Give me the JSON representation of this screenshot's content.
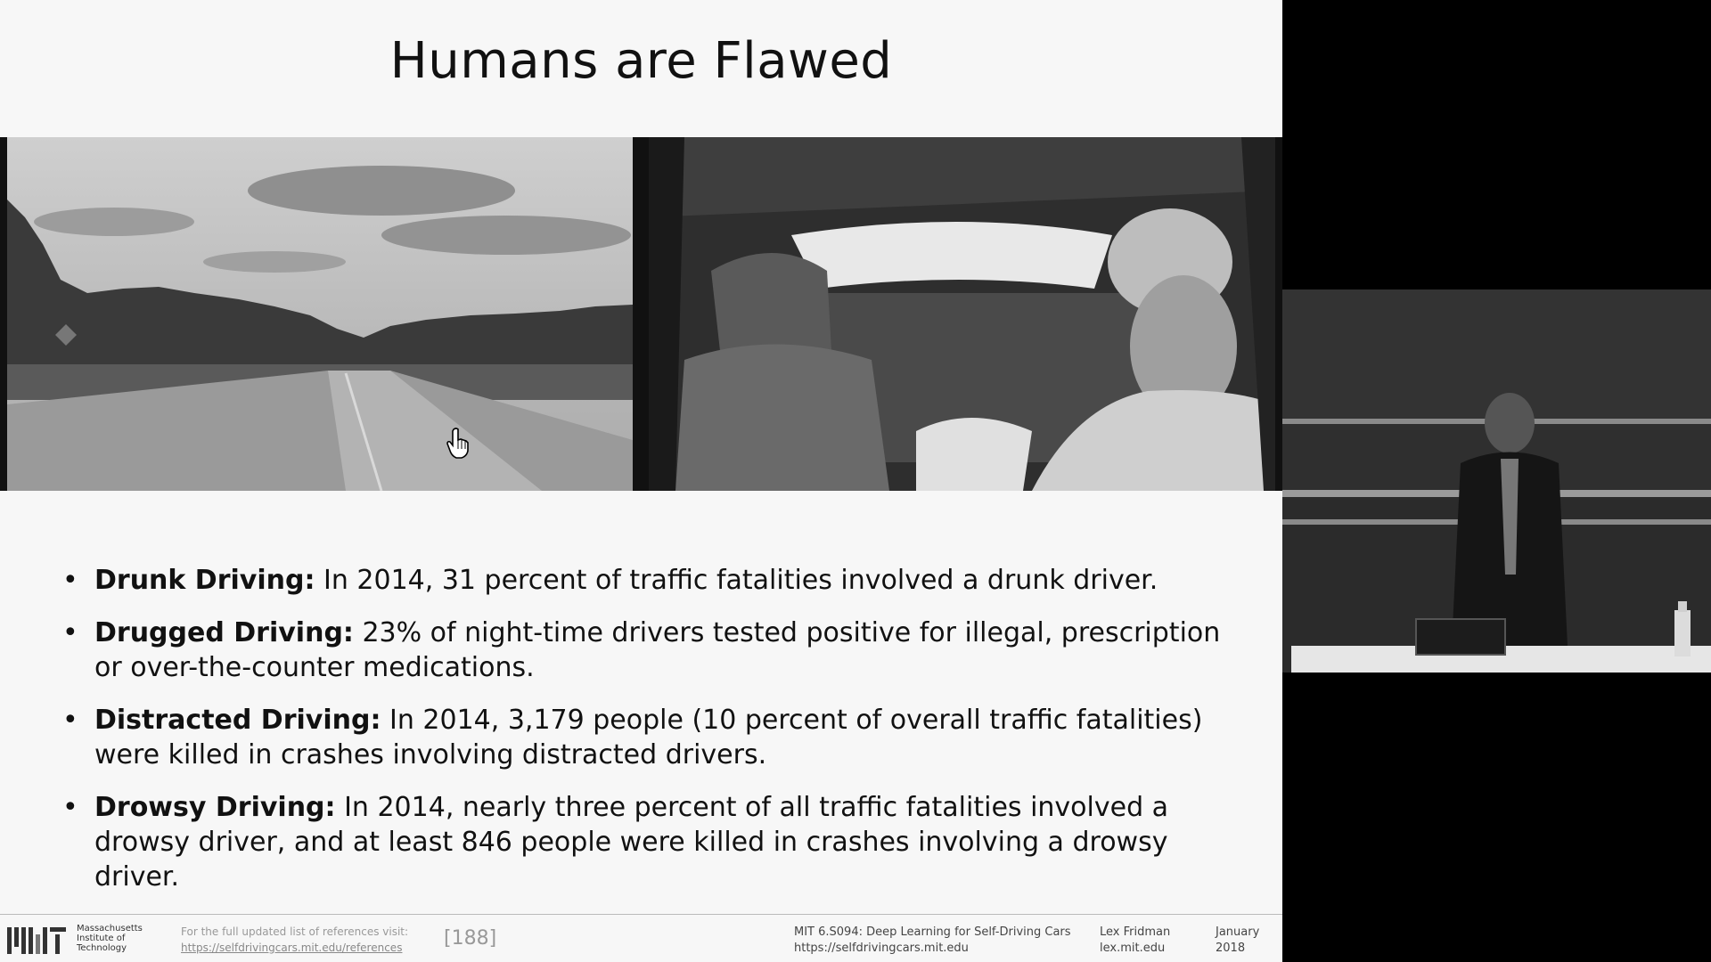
{
  "slide": {
    "title": "Humans are Flawed",
    "bullets": [
      {
        "term": "Drunk Driving:",
        "text": " In 2014, 31 percent of traffic fatalities involved a drunk driver."
      },
      {
        "term": "Drugged Driving:",
        "text": " 23% of night-time drivers tested positive for illegal, prescription or over-the-counter medications."
      },
      {
        "term": "Distracted Driving:",
        "text": " In 2014, 3,179 people (10 percent of overall traffic fatalities) were killed in crashes involving distracted drivers."
      },
      {
        "term": "Drowsy Driving:",
        "text": " In 2014, nearly three percent of all traffic fatalities involved a drowsy driver, and at least 846 people were killed in crashes involving a drowsy driver."
      }
    ],
    "bullet_symbol": "•"
  },
  "footer": {
    "institution": "Massachusetts Institute of Technology",
    "ref_note": "For the full updated list of references visit:",
    "ref_link": "https://selfdrivingcars.mit.edu/references",
    "slide_number": "[188]",
    "course_title": "MIT 6.S094: Deep Learning for Self-Driving Cars",
    "course_url": "https://selfdrivingcars.mit.edu",
    "author_name": "Lex Fridman",
    "author_site": "lex.mit.edu",
    "date_month": "January",
    "date_year": "2018"
  },
  "icons": {
    "cursor": "hand-pointer-icon",
    "logo": "mit-logo"
  }
}
